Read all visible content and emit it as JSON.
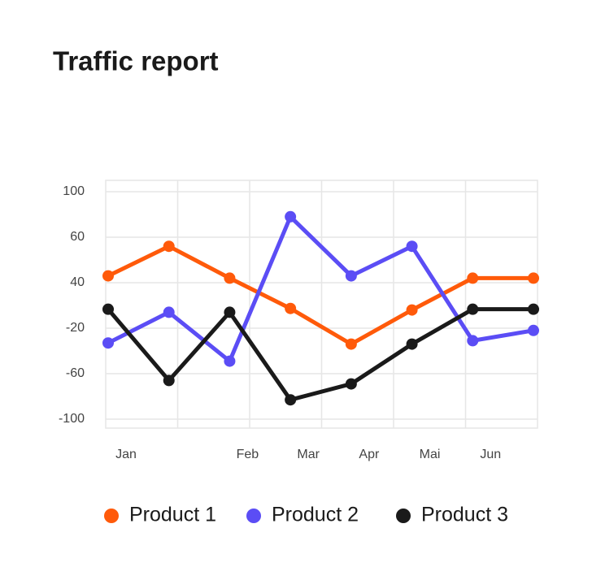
{
  "chart_data": {
    "type": "line",
    "title": "Traffic report",
    "categories": [
      "Jan",
      null,
      "Feb",
      "Mar",
      "Apr",
      "Mai",
      "Jun",
      null
    ],
    "series": [
      {
        "name": "Product 1",
        "color": "#ff5a0a",
        "values": [
          43,
          56,
          42,
          6,
          -34,
          4,
          42,
          42
        ]
      },
      {
        "name": "Product 2",
        "color": "#5b4df5",
        "values": [
          -33,
          1,
          -49,
          78,
          43,
          56,
          -31,
          -22
        ]
      },
      {
        "name": "Product 3",
        "color": "#1a1a1a",
        "values": [
          5,
          -66,
          1,
          -83,
          -69,
          -34,
          5,
          5
        ]
      }
    ],
    "ylim": [
      -100,
      100
    ],
    "yticks": [
      100,
      60,
      40,
      -20,
      -60,
      -100
    ],
    "grid": true
  }
}
